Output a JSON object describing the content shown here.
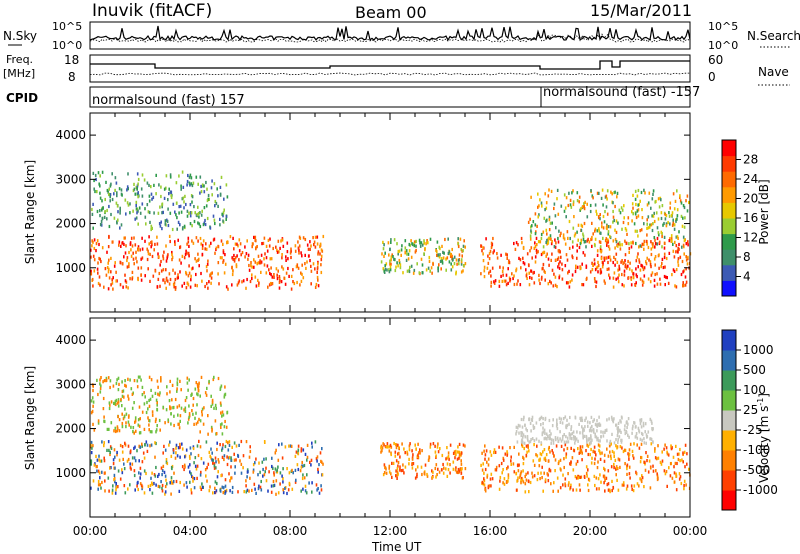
{
  "header": {
    "station": "Inuvik (fitACF)",
    "beam": "Beam 00",
    "date": "15/Mar/2011"
  },
  "top_panel": {
    "left_label": "N.Sky",
    "right_label": "N.Search",
    "left_ticks": [
      "10^5",
      "10^0"
    ],
    "right_ticks": [
      "10^5",
      "10^0"
    ]
  },
  "freq_panel": {
    "left_label_1": "Freq.",
    "left_label_2": "[MHz]",
    "right_label": "Nave",
    "left_ticks": [
      "18",
      "8"
    ],
    "right_ticks": [
      "60",
      "0"
    ]
  },
  "cpid_panel": {
    "label": "CPID",
    "mode_1": "normalsound (fast) 157",
    "mode_2": "normalsound (fast) -157"
  },
  "chart_data": [
    {
      "type": "heatmap",
      "name": "power",
      "ylabel": "Slant Range [km]",
      "yticks": [
        "1000",
        "2000",
        "3000",
        "4000"
      ],
      "ylim": [
        0,
        4500
      ],
      "colorbar_label": "Power [dB]",
      "colorbar_ticks": [
        "4",
        "8",
        "12",
        "16",
        "20",
        "24",
        "28"
      ],
      "colorbar_colors": [
        "#1010ff",
        "#3c5ab4",
        "#3f8f6a",
        "#2e9a4a",
        "#9acd32",
        "#e6c800",
        "#ff9a00",
        "#ff6a00",
        "#ff3a00",
        "#ff0000"
      ],
      "echo_bands": [
        {
          "t0": 0.0,
          "t1": 9.3,
          "r0": 550,
          "r1": 1750,
          "level": "high"
        },
        {
          "t0": 11.6,
          "t1": 15.0,
          "r0": 900,
          "r1": 1700,
          "level": "mid"
        },
        {
          "t0": 15.6,
          "t1": 24.0,
          "r0": 600,
          "r1": 1700,
          "level": "high"
        },
        {
          "t0": 17.5,
          "t1": 24.0,
          "r0": 1500,
          "r1": 2800,
          "level": "mid"
        },
        {
          "t0": 0.0,
          "t1": 5.5,
          "r0": 1900,
          "r1": 3200,
          "level": "low"
        }
      ]
    },
    {
      "type": "heatmap",
      "name": "velocity",
      "ylabel": "Slant Range [km]",
      "yticks": [
        "1000",
        "2000",
        "3000",
        "4000"
      ],
      "ylim": [
        0,
        4500
      ],
      "xlabel": "Time UT",
      "xticks": [
        "00:00",
        "04:00",
        "08:00",
        "12:00",
        "16:00",
        "20:00",
        "00:00"
      ],
      "colorbar_label": "Velocity [m s",
      "colorbar_label_sup": "-1",
      "colorbar_label_end": "]",
      "colorbar_ticks": [
        "1000",
        "500",
        "100",
        "25",
        "-25",
        "-100",
        "-500",
        "-1000"
      ],
      "colorbar_colors": [
        "#2040c0",
        "#2e6eb0",
        "#3c9a5a",
        "#6cc040",
        "#c8c8c0",
        "#ffb000",
        "#ff8000",
        "#ff4000",
        "#ff0000"
      ],
      "echo_bands": [
        {
          "t0": 0.0,
          "t1": 9.3,
          "r0": 550,
          "r1": 1750,
          "level": "blue-orange"
        },
        {
          "t0": 11.6,
          "t1": 15.0,
          "r0": 900,
          "r1": 1700,
          "level": "orange"
        },
        {
          "t0": 15.6,
          "t1": 24.0,
          "r0": 600,
          "r1": 1700,
          "level": "orange"
        },
        {
          "t0": 17.0,
          "t1": 22.5,
          "r0": 1700,
          "r1": 2300,
          "level": "grey"
        },
        {
          "t0": 0.0,
          "t1": 5.5,
          "r0": 1900,
          "r1": 3200,
          "level": "orange-green"
        }
      ]
    }
  ]
}
